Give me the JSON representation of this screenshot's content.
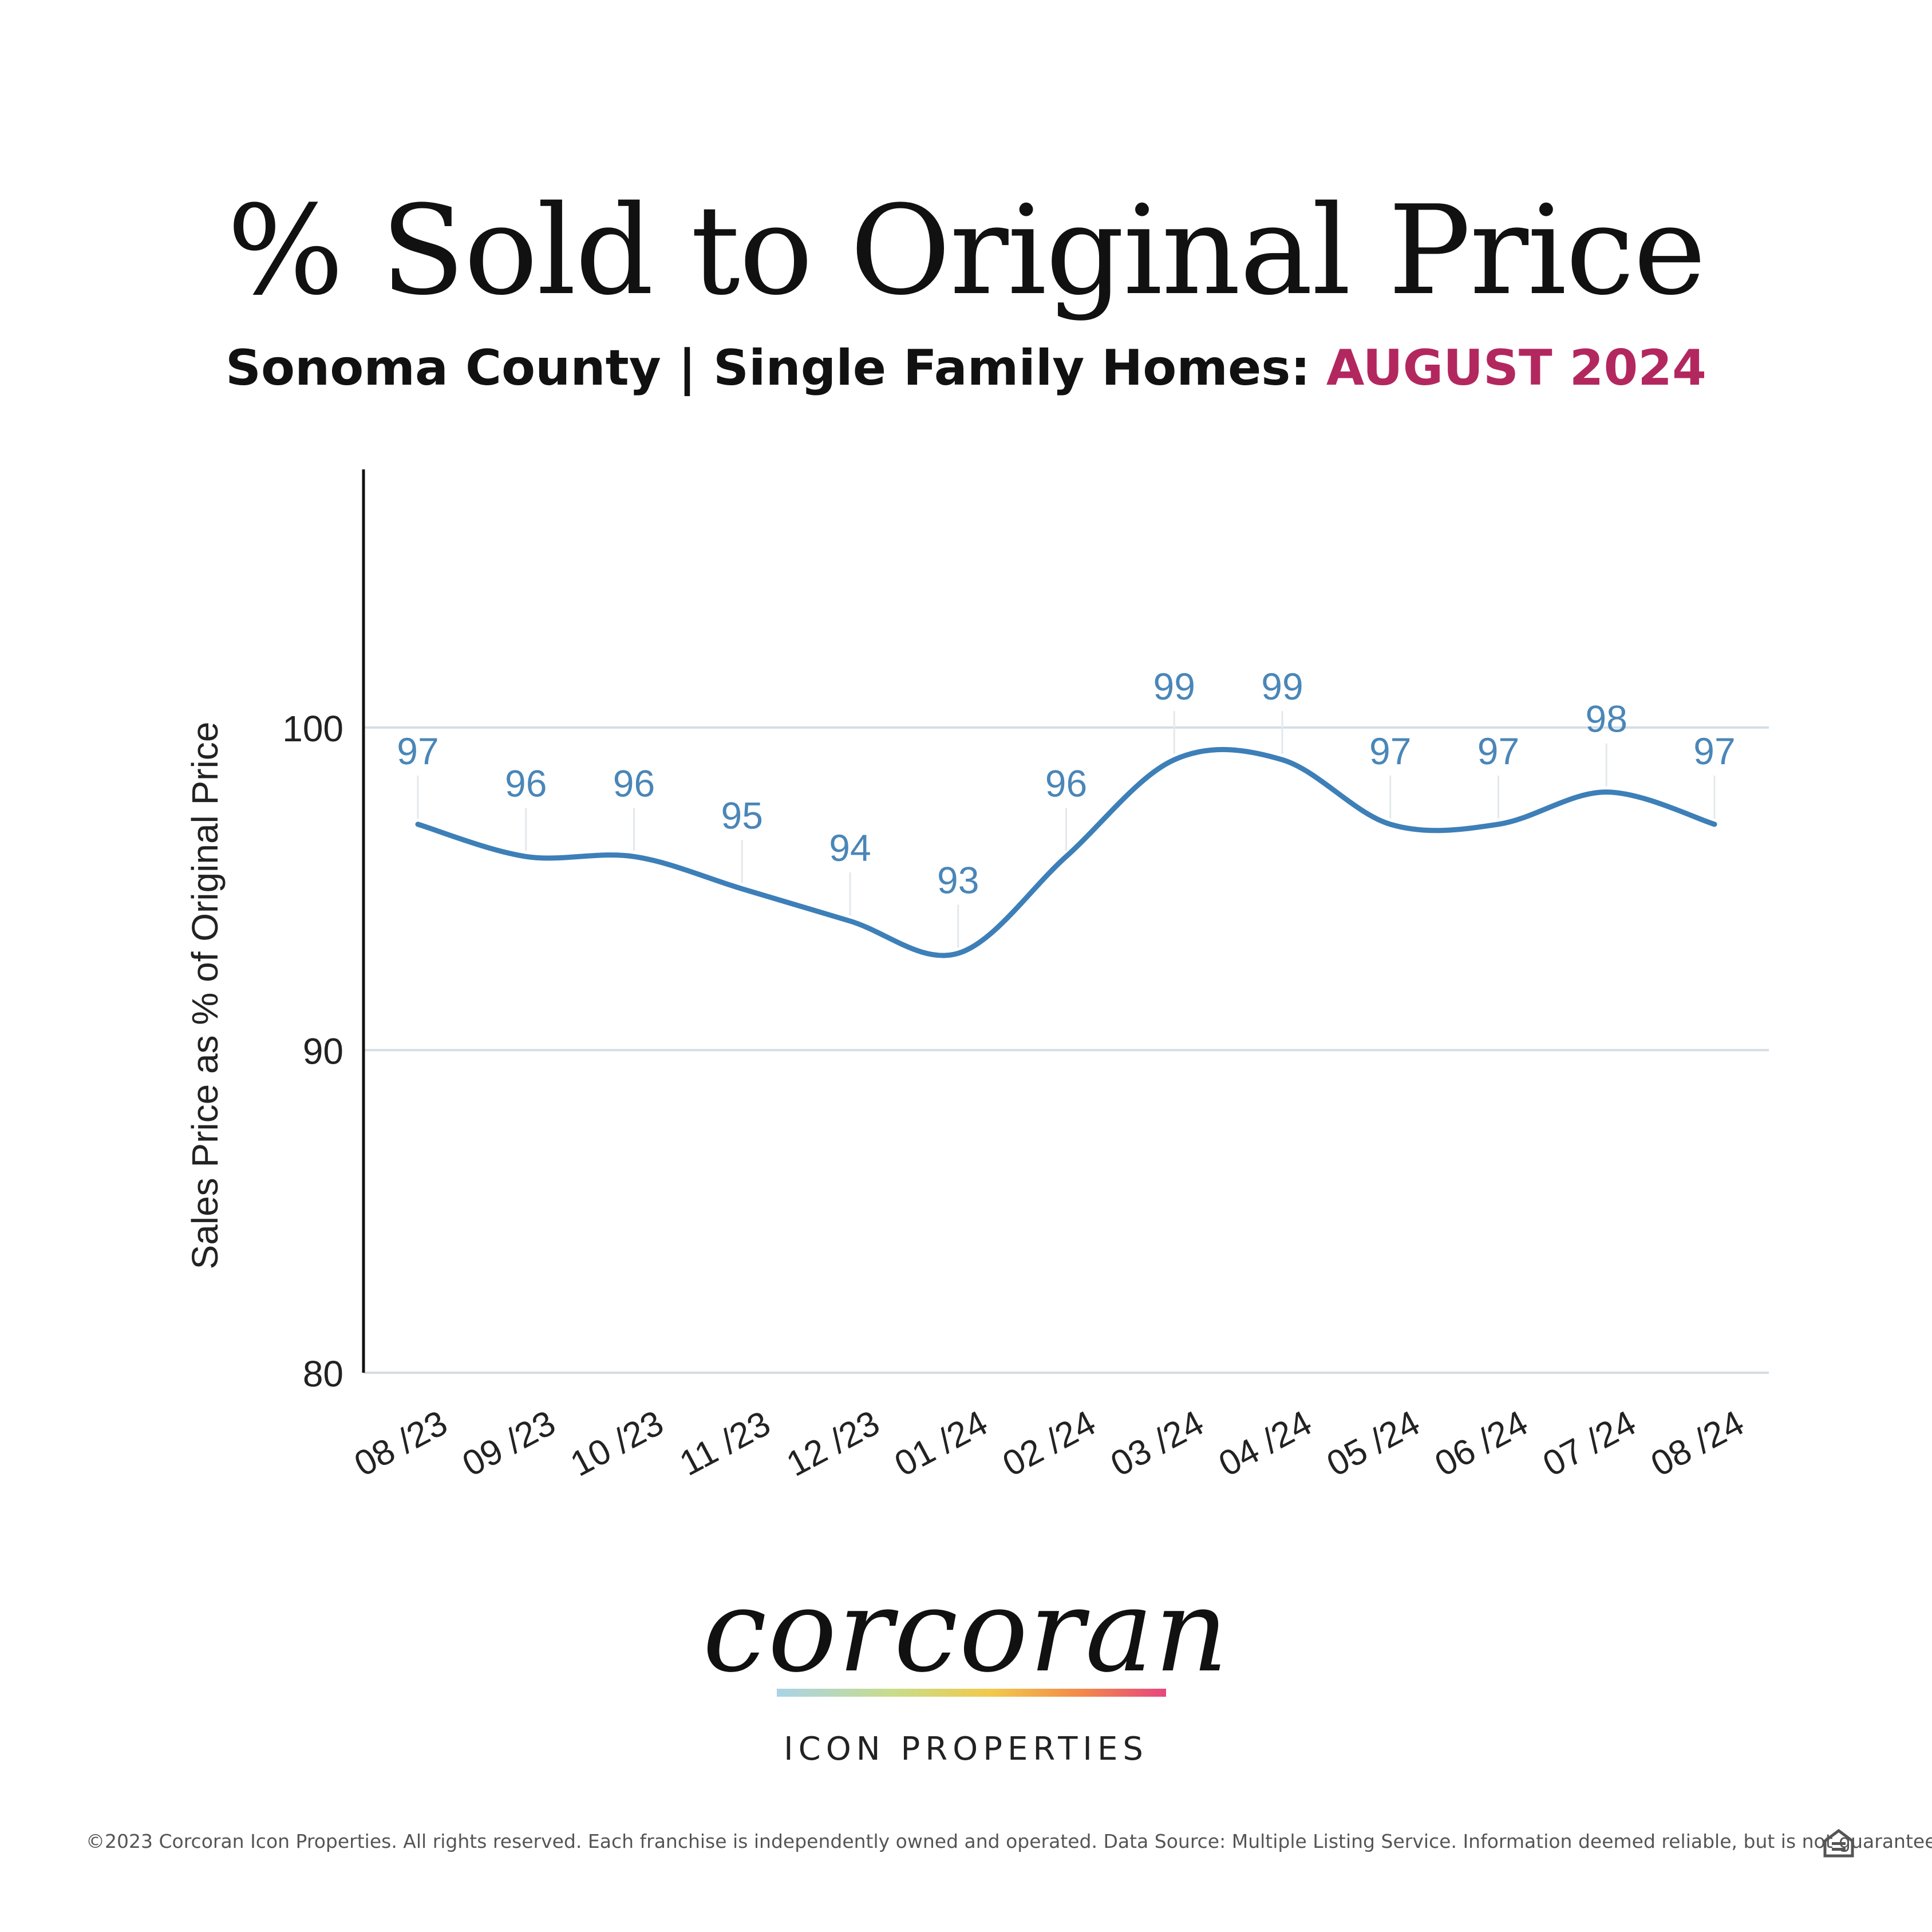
{
  "header": {
    "title": "% Sold to Original Price",
    "subtitle_main": "Sonoma County | Single Family Homes:",
    "subtitle_accent": "AUGUST 2024",
    "accent_color": "#b3275f"
  },
  "chart_data": {
    "type": "line",
    "categories": [
      "08 /23",
      "09 /23",
      "10 /23",
      "11 /23",
      "12 /23",
      "01 /24",
      "02 /24",
      "03 /24",
      "04 /24",
      "05 /24",
      "06 /24",
      "07 /24",
      "08 /24"
    ],
    "values": [
      97,
      96,
      96,
      95,
      94,
      93,
      96,
      99,
      99,
      97,
      97,
      98,
      97
    ],
    "ylabel": "Sales Price as % of Original Price",
    "yticks": [
      80,
      90,
      100
    ],
    "ylim": [
      80,
      108
    ],
    "grid": true,
    "line_color": "#3d7fb8",
    "label_color": "#4a86b8"
  },
  "brand": {
    "name": "corcoran",
    "sub": "ICON PROPERTIES"
  },
  "footer": {
    "text": "©2023 Corcoran Icon Properties. All rights reserved. Each franchise is independently owned and operated. Data Source: Multiple Listing Service. Information deemed reliable, but is not guaranteed.",
    "icon": "equal-housing-opportunity-icon"
  }
}
